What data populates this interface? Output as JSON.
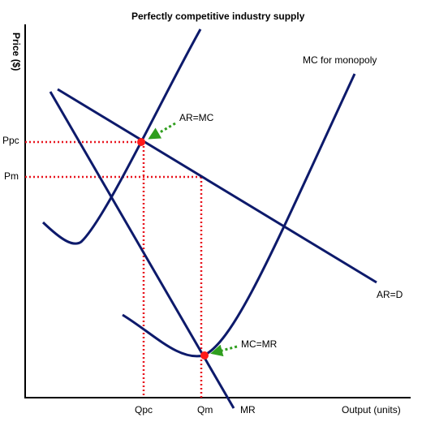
{
  "title": "Perfectly competitive industry supply",
  "y_axis_label": "Price ($)",
  "x_axis_label": "Output (units)",
  "curve_labels": {
    "mc_monopoly": "MC for monopoly",
    "ar_d": "AR=D",
    "mr": "MR"
  },
  "annotations": {
    "ar_mc": "AR=MC",
    "mc_mr": "MC=MR"
  },
  "ticks": {
    "ppc": "Ppc",
    "pm": "Pm",
    "qpc": "Qpc",
    "qm": "Qm"
  },
  "colors": {
    "curve": "#0d1a6b",
    "guide": "#e8141e",
    "point": "#ff1a1a",
    "arrow": "#2f9e1e",
    "axis": "#000000"
  }
}
